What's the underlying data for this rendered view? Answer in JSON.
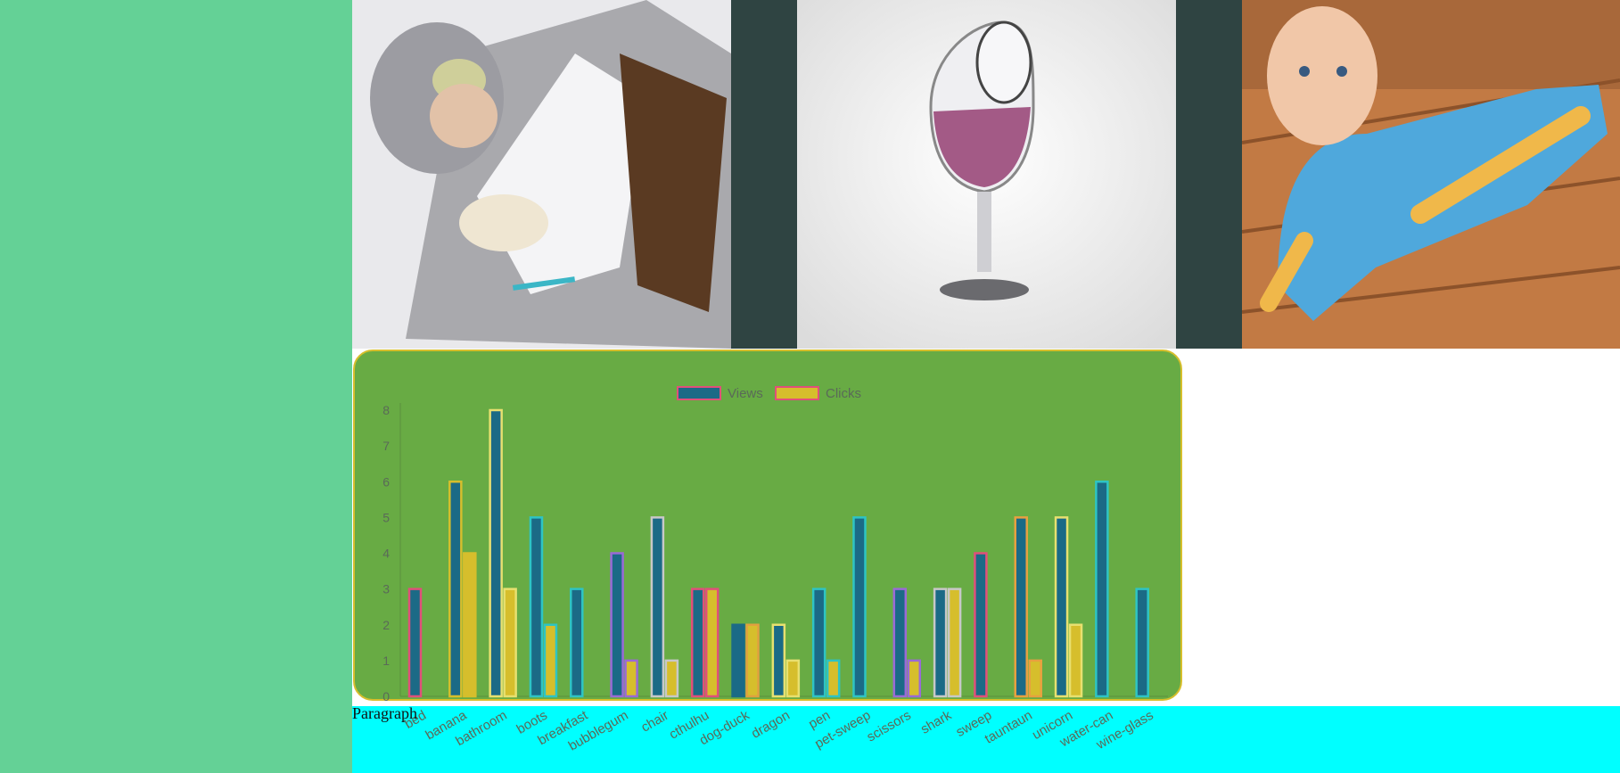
{
  "paragraph_text": "Paragraph",
  "colors": {
    "left_panel": "#64d196",
    "dark_strip": "#2f4442",
    "cyan_bar": "#00ffff",
    "chart_bg": "#68ab44",
    "chart_border": "#d6be2c",
    "views_fill": "#1b6a86",
    "clicks_fill": "#d6be2c",
    "legend_border": "#e0507a"
  },
  "images": [
    {
      "name": "kid-sleeping-bag-photo"
    },
    {
      "name": "wine-glass-photo"
    },
    {
      "name": "baby-mop-onesie-photo"
    }
  ],
  "chart_data": {
    "type": "bar",
    "categories": [
      "bed",
      "banana",
      "bathroom",
      "boots",
      "breakfast",
      "bubblegum",
      "chair",
      "cthulhu",
      "dog-duck",
      "dragon",
      "pen",
      "pet-sweep",
      "scissors",
      "shark",
      "sweep",
      "tauntaun",
      "unicorn",
      "water-can",
      "wine-glass"
    ],
    "series": [
      {
        "name": "Views",
        "values": [
          3,
          6,
          8,
          5,
          3,
          4,
          5,
          3,
          2,
          2,
          3,
          5,
          3,
          3,
          4,
          5,
          5,
          6,
          3
        ]
      },
      {
        "name": "Clicks",
        "values": [
          0,
          4,
          3,
          2,
          0,
          1,
          1,
          3,
          2,
          1,
          1,
          0,
          1,
          3,
          0,
          1,
          2,
          0,
          0
        ]
      }
    ],
    "view_borders": [
      "#e0507a",
      "#d6be2c",
      "#e8e070",
      "#2ec4c4",
      "#2ec4c4",
      "#9a6ad6",
      "#c8c8c8",
      "#e0507a",
      "#1b6a86",
      "#e8e070",
      "#2ec4c4",
      "#2ec4c4",
      "#9a6ad6",
      "#c8c8c8",
      "#e0507a",
      "#e8a040",
      "#e8e070",
      "#2ec4c4",
      "#2ec4c4"
    ],
    "click_borders": [
      "#e0507a",
      "#d6be2c",
      "#e8e070",
      "#2ec4c4",
      "#2ec4c4",
      "#9a6ad6",
      "#c8c8c8",
      "#e0507a",
      "#e0a040",
      "#e8e070",
      "#2ec4c4",
      "#2ec4c4",
      "#9a6ad6",
      "#c8c8c8",
      "#e0507a",
      "#e8a040",
      "#e8e070",
      "#2ec4c4",
      "#2ec4c4"
    ],
    "yticks": [
      "0",
      "1",
      "2",
      "3",
      "4",
      "5",
      "6",
      "7",
      "8"
    ],
    "ylim": [
      0,
      8
    ],
    "legend_position": "top-center",
    "grid": false
  }
}
